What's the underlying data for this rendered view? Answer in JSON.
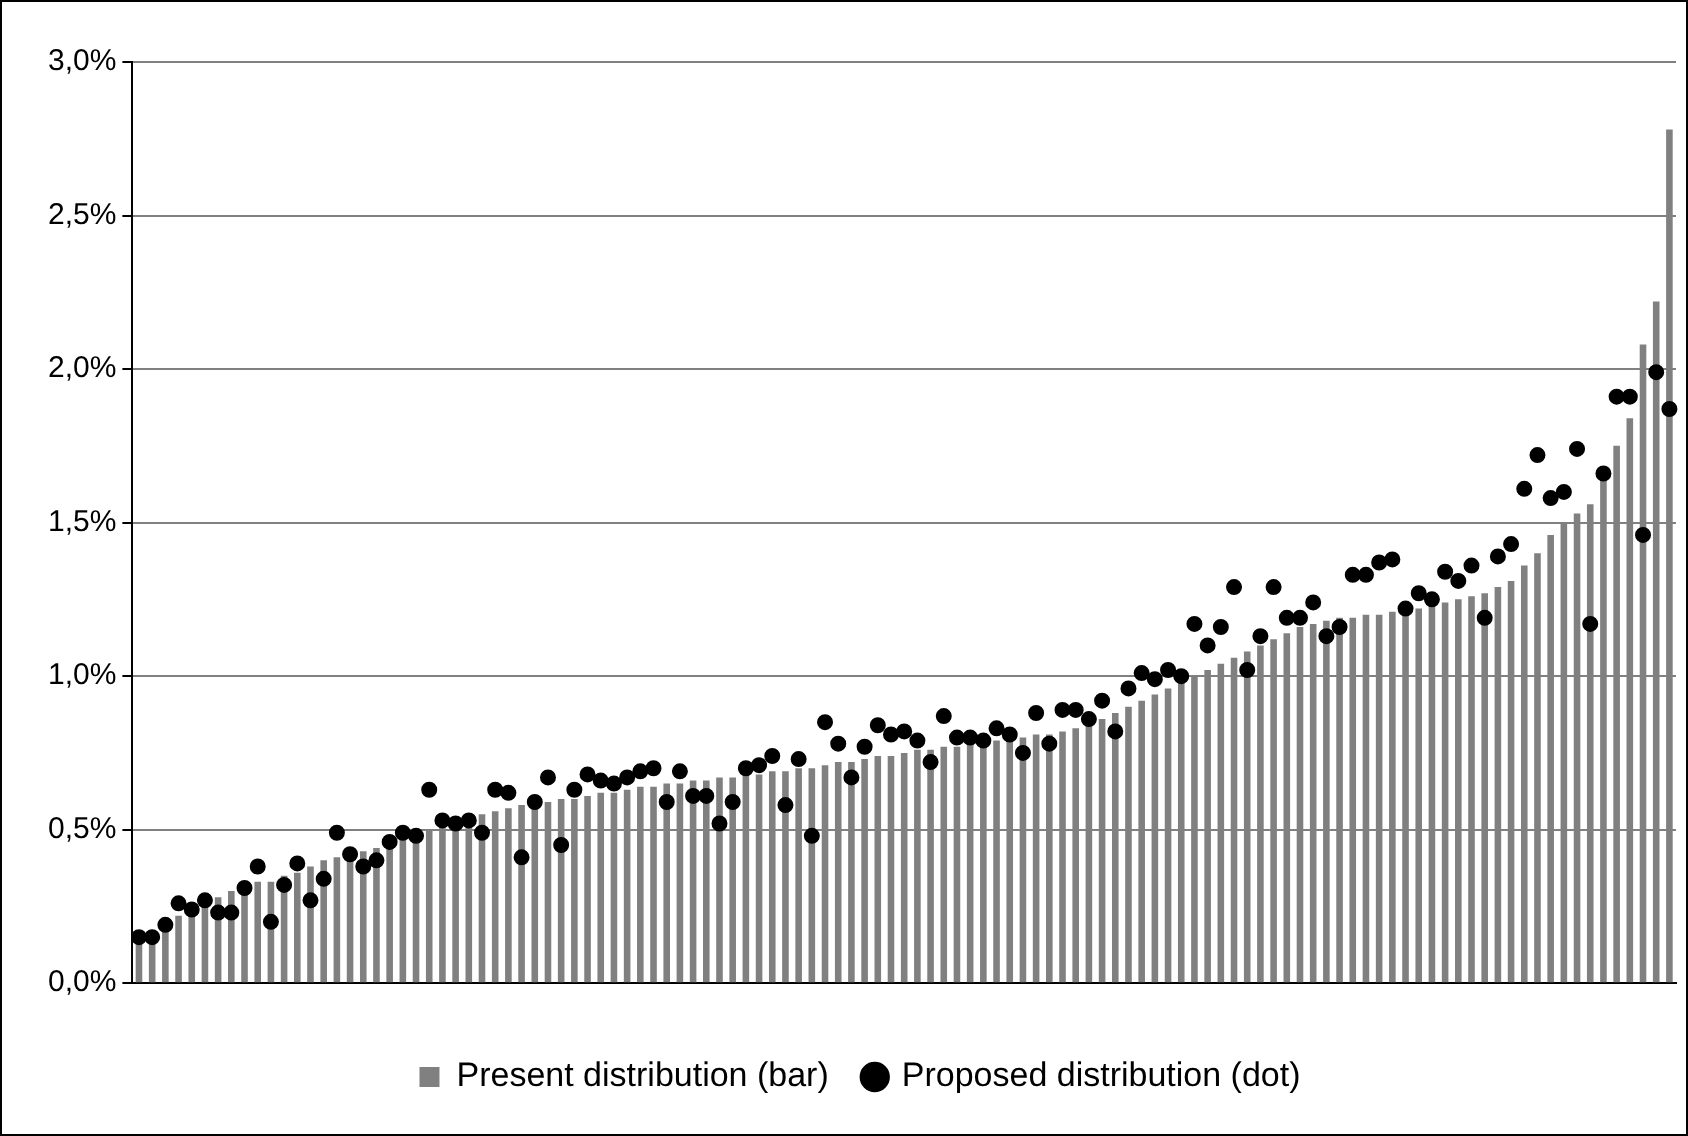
{
  "chart_data": {
    "type": "bar",
    "categories": [
      null,
      null,
      null,
      null,
      null,
      null,
      null,
      null,
      null,
      null,
      null,
      null,
      null,
      null,
      null,
      null,
      null,
      null,
      null,
      null,
      null,
      null,
      null,
      null,
      null,
      null,
      null,
      null,
      null,
      null,
      null,
      null,
      null,
      null,
      null,
      null,
      null,
      null,
      null,
      null,
      null,
      null,
      null,
      null,
      null,
      null,
      null,
      null,
      null,
      null,
      null,
      null,
      null,
      null,
      null,
      null,
      null,
      null,
      null,
      null,
      null,
      null,
      null,
      null,
      null,
      null,
      null,
      null,
      null,
      null,
      null,
      null,
      null,
      null,
      null,
      null,
      null,
      null,
      null,
      null,
      null,
      null,
      null,
      null,
      null,
      null,
      null,
      null,
      null,
      null,
      null,
      null,
      null,
      null,
      null,
      null,
      null,
      null,
      null,
      null,
      null,
      null,
      null,
      null,
      null,
      null,
      null,
      null,
      null,
      null,
      null,
      null,
      null,
      null,
      null,
      null,
      null
    ],
    "series": [
      {
        "name": "Present distribution (bar)",
        "color": "#808080",
        "values": [
          0.14,
          0.15,
          0.18,
          0.22,
          0.24,
          0.26,
          0.28,
          0.3,
          0.31,
          0.33,
          0.33,
          0.35,
          0.36,
          0.38,
          0.4,
          0.41,
          0.42,
          0.43,
          0.44,
          0.45,
          0.47,
          0.48,
          0.5,
          0.51,
          0.52,
          0.53,
          0.55,
          0.56,
          0.57,
          0.58,
          0.58,
          0.59,
          0.6,
          0.6,
          0.61,
          0.62,
          0.62,
          0.63,
          0.64,
          0.64,
          0.65,
          0.65,
          0.66,
          0.66,
          0.67,
          0.67,
          0.68,
          0.68,
          0.69,
          0.69,
          0.7,
          0.7,
          0.71,
          0.72,
          0.72,
          0.73,
          0.74,
          0.74,
          0.75,
          0.76,
          0.76,
          0.77,
          0.77,
          0.78,
          0.78,
          0.79,
          0.79,
          0.8,
          0.81,
          0.81,
          0.82,
          0.83,
          0.84,
          0.86,
          0.88,
          0.9,
          0.92,
          0.94,
          0.96,
          0.98,
          1.0,
          1.02,
          1.04,
          1.06,
          1.08,
          1.1,
          1.12,
          1.14,
          1.16,
          1.17,
          1.18,
          1.19,
          1.19,
          1.2,
          1.2,
          1.21,
          1.21,
          1.22,
          1.23,
          1.24,
          1.25,
          1.26,
          1.27,
          1.29,
          1.31,
          1.36,
          1.4,
          1.46,
          1.5,
          1.53,
          1.56,
          1.66,
          1.75,
          1.84,
          2.08,
          2.22,
          2.78
        ]
      },
      {
        "name": "Proposed distribution (dot)",
        "type": "scatter",
        "color": "#000000",
        "values": [
          0.15,
          0.15,
          0.19,
          0.26,
          0.24,
          0.27,
          0.23,
          0.23,
          0.31,
          0.38,
          0.2,
          0.32,
          0.39,
          0.27,
          0.34,
          0.49,
          0.42,
          0.38,
          0.4,
          0.46,
          0.49,
          0.48,
          0.63,
          0.53,
          0.52,
          0.53,
          0.49,
          0.63,
          0.62,
          0.41,
          0.59,
          0.67,
          0.45,
          0.63,
          0.68,
          0.66,
          0.65,
          0.67,
          0.69,
          0.7,
          0.59,
          0.69,
          0.61,
          0.61,
          0.52,
          0.59,
          0.7,
          0.71,
          0.74,
          0.58,
          0.73,
          0.48,
          0.85,
          0.78,
          0.67,
          0.77,
          0.84,
          0.81,
          0.82,
          0.79,
          0.72,
          0.87,
          0.8,
          0.8,
          0.79,
          0.83,
          0.81,
          0.75,
          0.88,
          0.78,
          0.89,
          0.89,
          0.86,
          0.92,
          0.82,
          0.96,
          1.01,
          0.99,
          1.02,
          1.0,
          1.17,
          1.1,
          1.16,
          1.29,
          1.02,
          1.13,
          1.29,
          1.19,
          1.19,
          1.24,
          1.13,
          1.16,
          1.33,
          1.33,
          1.37,
          1.38,
          1.22,
          1.27,
          1.25,
          1.34,
          1.31,
          1.36,
          1.19,
          1.39,
          1.43,
          1.61,
          1.72,
          1.58,
          1.6,
          1.74,
          1.17,
          1.66,
          1.91,
          1.91,
          1.46,
          1.99,
          1.87
        ]
      }
    ],
    "ylim": [
      0,
      3
    ],
    "yticks": [
      {
        "value": 0,
        "label": "0,0%"
      },
      {
        "value": 0.5,
        "label": "0,5%"
      },
      {
        "value": 1,
        "label": "1,0%"
      },
      {
        "value": 1.5,
        "label": "1,5%"
      },
      {
        "value": 2,
        "label": "2,0%"
      },
      {
        "value": 2.5,
        "label": "2,5%"
      },
      {
        "value": 3,
        "label": "3,0%"
      }
    ],
    "grid": "y",
    "legend": "bottom",
    "marker": "circle"
  }
}
